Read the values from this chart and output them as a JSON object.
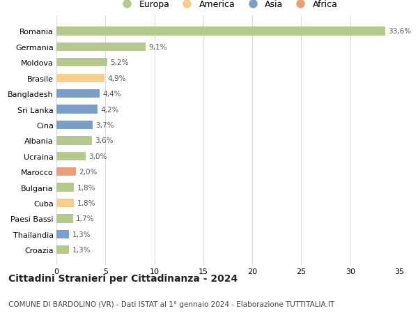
{
  "countries": [
    "Romania",
    "Germania",
    "Moldova",
    "Brasile",
    "Bangladesh",
    "Sri Lanka",
    "Cina",
    "Albania",
    "Ucraina",
    "Marocco",
    "Bulgaria",
    "Cuba",
    "Paesi Bassi",
    "Thailandia",
    "Croazia"
  ],
  "values": [
    33.6,
    9.1,
    5.2,
    4.9,
    4.4,
    4.2,
    3.7,
    3.6,
    3.0,
    2.0,
    1.8,
    1.8,
    1.7,
    1.3,
    1.3
  ],
  "labels": [
    "33,6%",
    "9,1%",
    "5,2%",
    "4,9%",
    "4,4%",
    "4,2%",
    "3,7%",
    "3,6%",
    "3,0%",
    "2,0%",
    "1,8%",
    "1,8%",
    "1,7%",
    "1,3%",
    "1,3%"
  ],
  "colors": [
    "#b5c98e",
    "#b5c98e",
    "#b5c98e",
    "#f5cf89",
    "#7b9fc7",
    "#7b9fc7",
    "#7b9fc7",
    "#b5c98e",
    "#b5c98e",
    "#e8a07a",
    "#b5c98e",
    "#f5cf89",
    "#b5c98e",
    "#7b9fc7",
    "#b5c98e"
  ],
  "legend_labels": [
    "Europa",
    "America",
    "Asia",
    "Africa"
  ],
  "legend_colors": [
    "#b5c98e",
    "#f5cf89",
    "#7b9fc7",
    "#e8a07a"
  ],
  "xlim": [
    0,
    35
  ],
  "xticks": [
    0,
    5,
    10,
    15,
    20,
    25,
    30,
    35
  ],
  "title": "Cittadini Stranieri per Cittadinanza - 2024",
  "subtitle": "COMUNE DI BARDOLINO (VR) - Dati ISTAT al 1° gennaio 2024 - Elaborazione TUTTITALIA.IT",
  "title_fontsize": 10,
  "subtitle_fontsize": 7.5,
  "label_fontsize": 7.5,
  "tick_fontsize": 8,
  "bar_height": 0.55,
  "background_color": "#ffffff",
  "grid_color": "#dddddd"
}
